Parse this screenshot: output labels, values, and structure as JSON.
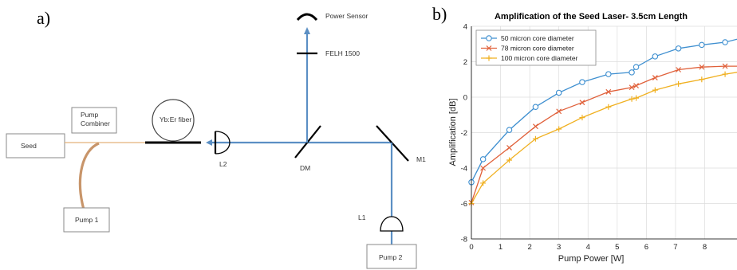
{
  "panels": {
    "a_label": "a)",
    "b_label": "b)"
  },
  "diagram": {
    "seed": "Seed",
    "pump_combiner_line1": "Pump",
    "pump_combiner_line2": "Combiner",
    "pump1": "Pump 1",
    "fiber": "Yb:Er fiber",
    "l2": "L2",
    "dm": "DM",
    "m1": "M1",
    "l1": "L1",
    "pump2": "Pump 2",
    "filter": "FELH 1500",
    "power_sensor": "Power Sensor",
    "colors": {
      "beam": "#5b8fc4",
      "seed_fiber": "#e3b27a",
      "pump1_fiber": "#c8956a"
    }
  },
  "chart_data": {
    "type": "line",
    "title": "Amplification of the Seed Laser- 3.5cm Length",
    "xlabel": "Pump Power [W]",
    "ylabel": "Amplification [dB]",
    "xlim": [
      0,
      9.3
    ],
    "ylim": [
      -8,
      4
    ],
    "xticks": [
      0,
      1,
      2,
      3,
      4,
      5,
      6,
      7,
      8
    ],
    "yticks": [
      -8,
      -6,
      -4,
      -2,
      0,
      2,
      4
    ],
    "grid": true,
    "legend_position": "top-left",
    "series": [
      {
        "name": "50 micron core diameter",
        "color": "#3e8fd0",
        "marker": "circle",
        "x": [
          0,
          0.4,
          1.3,
          2.2,
          3.0,
          3.8,
          4.7,
          5.5,
          5.65,
          6.3,
          7.1,
          7.9,
          8.7,
          9.3
        ],
        "y": [
          -4.8,
          -3.5,
          -1.85,
          -0.55,
          0.25,
          0.85,
          1.3,
          1.4,
          1.7,
          2.3,
          2.75,
          2.95,
          3.1,
          3.35
        ]
      },
      {
        "name": "78 micron core diameter",
        "color": "#e0603a",
        "marker": "x",
        "x": [
          0,
          0.4,
          1.3,
          2.2,
          3.0,
          3.8,
          4.7,
          5.5,
          5.65,
          6.3,
          7.1,
          7.9,
          8.7,
          9.3
        ],
        "y": [
          -5.95,
          -4.0,
          -2.85,
          -1.65,
          -0.8,
          -0.3,
          0.3,
          0.55,
          0.65,
          1.1,
          1.55,
          1.7,
          1.75,
          1.75
        ]
      },
      {
        "name": "100 micron core diameter",
        "color": "#f0b020",
        "marker": "plus",
        "x": [
          0,
          0.4,
          1.3,
          2.2,
          3.0,
          3.8,
          4.7,
          5.5,
          5.65,
          6.3,
          7.1,
          7.9,
          8.7,
          9.3
        ],
        "y": [
          -6.0,
          -4.85,
          -3.55,
          -2.35,
          -1.8,
          -1.15,
          -0.55,
          -0.1,
          -0.05,
          0.4,
          0.75,
          1.0,
          1.3,
          1.45
        ]
      }
    ]
  }
}
